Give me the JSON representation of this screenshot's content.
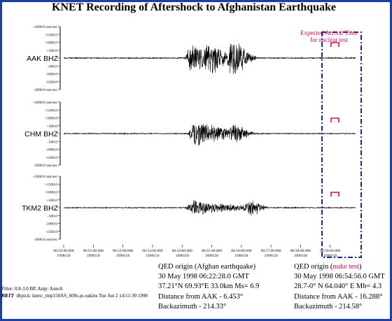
{
  "chart_data": {
    "type": "line",
    "title": "KNET Recording of Aftershock to Afghanistan Earthquake",
    "y_tick_labels": [
      "+2000.0 nm/sec",
      "+1500.0",
      "+1000.0",
      "+500.0",
      "0",
      "-500.0",
      "-1000.0",
      "-1500.0",
      "-2000.0 nm/sec"
    ],
    "x_tick_labels": [
      [
        "06:50:00.000",
        "1998150"
      ],
      [
        "06:51:00.000",
        "1998150"
      ],
      [
        "06:52:00.000",
        "1998150"
      ],
      [
        "06:53:00.000",
        "1998150"
      ],
      [
        "06:54:00.000",
        "1998150"
      ],
      [
        "06:55:00.000",
        "1998150"
      ],
      [
        "06:56:00.000",
        "1998150"
      ],
      [
        "06:57:00.000",
        "1998150"
      ],
      [
        "06:58:00.000",
        "1998150"
      ],
      [
        "06:59:00.000",
        "1998150"
      ]
    ],
    "x_range_minutes": [
      0,
      9.9
    ],
    "ylim": [
      -2000,
      2000
    ],
    "series": [
      {
        "name": "AAK BHZ",
        "noise_amp": 35,
        "bursts": [
          {
            "start": 4.1,
            "peak": 4.25,
            "end": 6.3,
            "amp": 900
          },
          {
            "start": 5.5,
            "peak": 5.7,
            "end": 6.6,
            "amp": 1350
          },
          {
            "start": 4.6,
            "peak": 5.0,
            "end": 5.6,
            "amp": 650
          }
        ]
      },
      {
        "name": "CHM BHZ",
        "noise_amp": 30,
        "bursts": [
          {
            "start": 4.2,
            "peak": 4.35,
            "end": 6.7,
            "amp": 950
          },
          {
            "start": 5.6,
            "peak": 5.8,
            "end": 6.4,
            "amp": 450
          }
        ]
      },
      {
        "name": "TKM2 BHZ",
        "noise_amp": 30,
        "bursts": [
          {
            "start": 4.1,
            "peak": 4.4,
            "end": 7.0,
            "amp": 520
          },
          {
            "start": 6.0,
            "peak": 6.4,
            "end": 6.9,
            "amp": 550
          }
        ]
      }
    ],
    "annotation": "Expected Arrival Time for nuclear test"
  },
  "afghan": {
    "heading": "QED origin (Afghan earthquake)",
    "date": "30 May 1998   06:22:28.0 GMT",
    "coords": "37.21°N   69.93°E 33.0km Ms= 6.9",
    "distance": "Distance from AAK - 6.453°",
    "backazimuth": "Backazimuth - 214.33°"
  },
  "nuke": {
    "heading_pre": "QED origin (",
    "heading_mid": "nuke test",
    "heading_post": ")",
    "date": "30 May 1998   06:54:56.0 GMT",
    "coords": "28.7-0° N   64.040° E Mb= 4.3",
    "distance": "Distance from AAK - 16.288°",
    "backazimuth": "Backazimuth - 214.58°"
  },
  "footer": {
    "filter": "Filter: 0.8-3.0 BP, Amp: AutoA",
    "brtt": "BRTT",
    "dbpick": "dbpick: knetc_tmp150AS_600s.ps eakins Tue Jun  2 14:51:30 1998"
  },
  "colors": {
    "border": "#1a3fa8",
    "box": "#1a2a8c",
    "highlight": "#e8005a"
  }
}
